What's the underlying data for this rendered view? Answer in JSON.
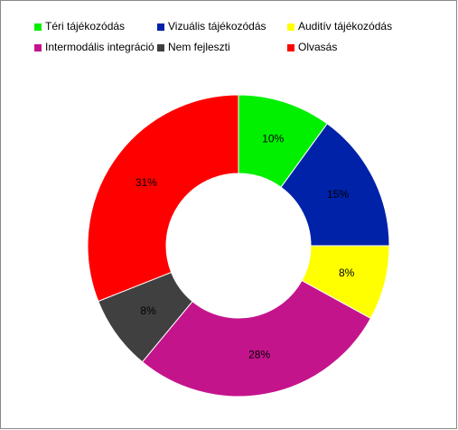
{
  "chart_data": {
    "type": "donut",
    "categories": [
      "Téri tájékozódás",
      "Vizuális tájékozódás",
      "Auditív tájékozódás",
      "Intermodális integráció",
      "Nem fejleszti",
      "Olvasás"
    ],
    "values": [
      10,
      15,
      8,
      28,
      8,
      31
    ],
    "value_labels": [
      "10%",
      "15%",
      "8%",
      "28%",
      "8%",
      "31%"
    ],
    "colors": [
      "#00f000",
      "#0022a8",
      "#ffff00",
      "#c4148c",
      "#404040",
      "#ff0000"
    ],
    "legend": "top"
  }
}
